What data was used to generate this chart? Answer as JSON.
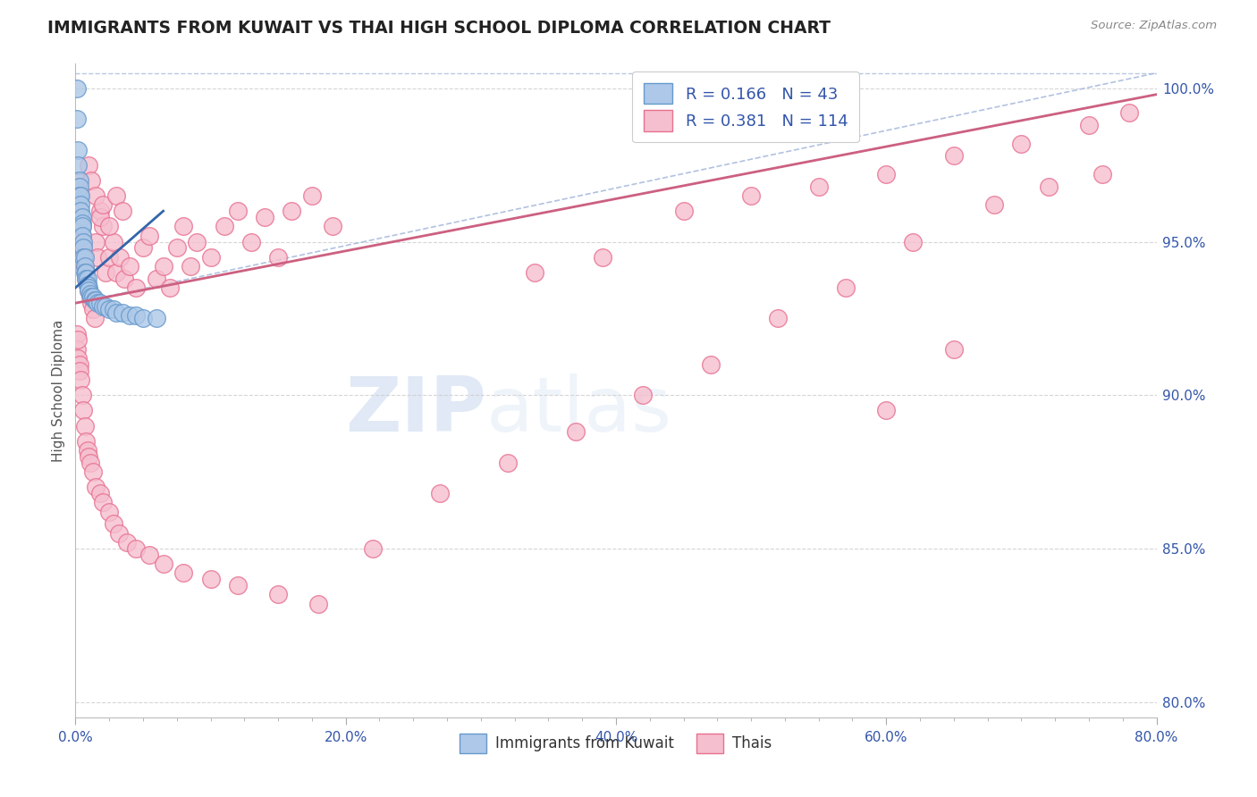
{
  "title": "IMMIGRANTS FROM KUWAIT VS THAI HIGH SCHOOL DIPLOMA CORRELATION CHART",
  "source": "Source: ZipAtlas.com",
  "ylabel": "High School Diploma",
  "xlim": [
    0.0,
    0.8
  ],
  "ylim": [
    0.795,
    1.008
  ],
  "xtick_labels": [
    "0.0%",
    "",
    "",
    "",
    "",
    "",
    "",
    "",
    "20.0%",
    "",
    "",
    "",
    "",
    "",
    "",
    "",
    "40.0%",
    "",
    "",
    "",
    "",
    "",
    "",
    "",
    "60.0%",
    "",
    "",
    "",
    "",
    "",
    "",
    "",
    "80.0%"
  ],
  "xtick_vals": [
    0.0,
    0.025,
    0.05,
    0.075,
    0.1,
    0.125,
    0.15,
    0.175,
    0.2,
    0.225,
    0.25,
    0.275,
    0.3,
    0.325,
    0.35,
    0.375,
    0.4,
    0.425,
    0.45,
    0.475,
    0.5,
    0.525,
    0.55,
    0.575,
    0.6,
    0.625,
    0.65,
    0.675,
    0.7,
    0.725,
    0.75,
    0.775,
    0.8
  ],
  "ytick_vals": [
    0.8,
    0.85,
    0.9,
    0.95,
    1.0
  ],
  "ytick_labels": [
    "80.0%",
    "85.0%",
    "90.0%",
    "95.0%",
    "100.0%"
  ],
  "legend_r1": "R = 0.166",
  "legend_n1": "N = 43",
  "legend_r2": "R = 0.381",
  "legend_n2": "N = 114",
  "watermark_zip": "ZIP",
  "watermark_atlas": "atlas",
  "blue_color": "#adc8e8",
  "blue_edge": "#6699cc",
  "pink_color": "#f5bfcf",
  "pink_edge": "#e87090",
  "trend_blue": "#3366aa",
  "trend_pink": "#cc6080",
  "dash_color": "#aabbdd",
  "axis_color": "#3355aa",
  "title_color": "#222222",
  "kuwait_x": [
    0.001,
    0.001,
    0.002,
    0.002,
    0.003,
    0.003,
    0.003,
    0.004,
    0.004,
    0.004,
    0.005,
    0.005,
    0.005,
    0.005,
    0.006,
    0.006,
    0.006,
    0.007,
    0.007,
    0.007,
    0.008,
    0.008,
    0.009,
    0.009,
    0.01,
    0.01,
    0.011,
    0.012,
    0.013,
    0.014,
    0.015,
    0.016,
    0.018,
    0.02,
    0.022,
    0.025,
    0.028,
    0.03,
    0.035,
    0.04,
    0.045,
    0.05,
    0.06
  ],
  "kuwait_y": [
    1.0,
    0.99,
    0.98,
    0.975,
    0.97,
    0.968,
    0.965,
    0.965,
    0.962,
    0.96,
    0.958,
    0.956,
    0.955,
    0.952,
    0.95,
    0.948,
    0.945,
    0.945,
    0.942,
    0.94,
    0.94,
    0.938,
    0.938,
    0.936,
    0.935,
    0.934,
    0.933,
    0.932,
    0.932,
    0.931,
    0.931,
    0.93,
    0.93,
    0.929,
    0.929,
    0.928,
    0.928,
    0.927,
    0.927,
    0.926,
    0.926,
    0.925,
    0.925
  ],
  "thai_x": [
    0.001,
    0.001,
    0.002,
    0.002,
    0.003,
    0.003,
    0.004,
    0.004,
    0.005,
    0.005,
    0.006,
    0.006,
    0.007,
    0.007,
    0.008,
    0.008,
    0.009,
    0.01,
    0.011,
    0.012,
    0.013,
    0.014,
    0.015,
    0.016,
    0.018,
    0.02,
    0.022,
    0.025,
    0.028,
    0.03,
    0.033,
    0.036,
    0.04,
    0.045,
    0.05,
    0.055,
    0.06,
    0.065,
    0.07,
    0.075,
    0.08,
    0.085,
    0.09,
    0.1,
    0.11,
    0.12,
    0.13,
    0.14,
    0.15,
    0.16,
    0.175,
    0.19,
    0.01,
    0.012,
    0.015,
    0.018,
    0.02,
    0.025,
    0.03,
    0.035,
    0.001,
    0.001,
    0.002,
    0.002,
    0.003,
    0.003,
    0.004,
    0.005,
    0.006,
    0.007,
    0.008,
    0.009,
    0.01,
    0.011,
    0.013,
    0.015,
    0.018,
    0.02,
    0.025,
    0.028,
    0.032,
    0.038,
    0.045,
    0.055,
    0.065,
    0.08,
    0.1,
    0.12,
    0.15,
    0.18,
    0.22,
    0.27,
    0.32,
    0.37,
    0.42,
    0.47,
    0.52,
    0.57,
    0.62,
    0.68,
    0.72,
    0.76,
    0.34,
    0.39,
    0.45,
    0.5,
    0.55,
    0.6,
    0.65,
    0.7,
    0.75,
    0.78,
    0.6,
    0.65
  ],
  "thai_y": [
    0.97,
    0.965,
    0.968,
    0.962,
    0.965,
    0.96,
    0.958,
    0.955,
    0.955,
    0.952,
    0.95,
    0.948,
    0.945,
    0.942,
    0.94,
    0.938,
    0.936,
    0.934,
    0.932,
    0.93,
    0.928,
    0.925,
    0.95,
    0.945,
    0.96,
    0.955,
    0.94,
    0.945,
    0.95,
    0.94,
    0.945,
    0.938,
    0.942,
    0.935,
    0.948,
    0.952,
    0.938,
    0.942,
    0.935,
    0.948,
    0.955,
    0.942,
    0.95,
    0.945,
    0.955,
    0.96,
    0.95,
    0.958,
    0.945,
    0.96,
    0.965,
    0.955,
    0.975,
    0.97,
    0.965,
    0.958,
    0.962,
    0.955,
    0.965,
    0.96,
    0.92,
    0.915,
    0.918,
    0.912,
    0.91,
    0.908,
    0.905,
    0.9,
    0.895,
    0.89,
    0.885,
    0.882,
    0.88,
    0.878,
    0.875,
    0.87,
    0.868,
    0.865,
    0.862,
    0.858,
    0.855,
    0.852,
    0.85,
    0.848,
    0.845,
    0.842,
    0.84,
    0.838,
    0.835,
    0.832,
    0.85,
    0.868,
    0.878,
    0.888,
    0.9,
    0.91,
    0.925,
    0.935,
    0.95,
    0.962,
    0.968,
    0.972,
    0.94,
    0.945,
    0.96,
    0.965,
    0.968,
    0.972,
    0.978,
    0.982,
    0.988,
    0.992,
    0.895,
    0.915
  ]
}
